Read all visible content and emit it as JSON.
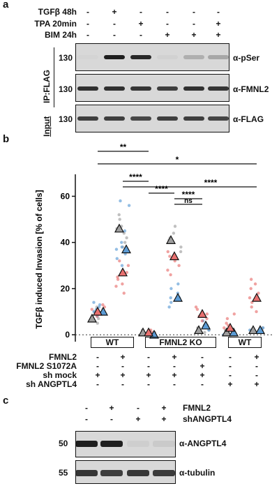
{
  "panel_a": {
    "letter": "a",
    "conditions": [
      {
        "label": "TGFβ 48h",
        "signs": [
          "-",
          "+",
          "-",
          "-",
          "-",
          "-"
        ]
      },
      {
        "label": "TPA 20min",
        "signs": [
          "-",
          "-",
          "+",
          "-",
          "-",
          "+"
        ]
      },
      {
        "label": "BIM 24h",
        "signs": [
          "-",
          "-",
          "-",
          "+",
          "+",
          "+"
        ]
      }
    ],
    "ip_label": "IP:FLAG",
    "input_label": "Input",
    "blots": [
      {
        "mw": "130",
        "antibody": "α-pSer",
        "band_intensity": [
          0.05,
          0.95,
          0.92,
          0.08,
          0.35,
          0.4
        ]
      },
      {
        "mw": "130",
        "antibody": "α-FMNL2",
        "band_intensity": [
          0.9,
          0.9,
          0.88,
          0.85,
          0.9,
          0.88
        ]
      },
      {
        "mw": "130",
        "antibody": "α-FLAG",
        "band_intensity": [
          0.85,
          0.85,
          0.82,
          0.85,
          0.85,
          0.83
        ]
      }
    ]
  },
  "panel_b": {
    "letter": "b",
    "groups": {
      "wt1": "WT",
      "ko": "FMNL2 KO",
      "wt2": "WT"
    },
    "conditions": [
      {
        "label": "FMNL2",
        "signs": [
          "-",
          "+",
          "-",
          "+",
          "-",
          "-",
          "+"
        ]
      },
      {
        "label": "FMNL2 S1072A",
        "signs": [
          "-",
          "-",
          "-",
          "-",
          "+",
          "-",
          "-"
        ]
      },
      {
        "label": "sh mock",
        "signs": [
          "+",
          "+",
          "+",
          "+",
          "+",
          "-",
          "-"
        ]
      },
      {
        "label": "sh ANGPTL4",
        "signs": [
          "-",
          "-",
          "-",
          "-",
          "-",
          "+",
          "+"
        ]
      }
    ],
    "significance": [
      {
        "label": "**",
        "from": 0,
        "to": 2
      },
      {
        "label": "*",
        "from": 0,
        "to": 6
      },
      {
        "label": "****",
        "from": 1,
        "to": 2
      },
      {
        "label": "****",
        "from": 1,
        "to": 6
      },
      {
        "label": "****",
        "from": 2,
        "to": 3
      },
      {
        "label": "****",
        "from": 3,
        "to": 4
      },
      {
        "label": "ns",
        "from": 3,
        "to": 4
      }
    ]
  },
  "chart_data": {
    "type": "scatter",
    "ylabel": "TGFβ induced Invasion [% of cells]",
    "yticks": [
      0,
      20,
      40,
      60
    ],
    "ylim": [
      -3,
      68
    ],
    "categories": [
      "1",
      "2",
      "3",
      "4",
      "5",
      "6",
      "7"
    ],
    "series": [
      {
        "color": "#9e9e9e",
        "means": [
          7,
          46,
          1,
          41,
          2,
          1,
          2
        ],
        "points": [
          [
            5,
            7,
            8,
            10,
            12,
            9,
            6,
            11
          ],
          [
            44,
            47,
            50,
            42,
            40,
            46,
            38,
            52
          ],
          [
            0,
            1,
            2,
            1,
            0,
            2,
            1
          ],
          [
            38,
            41,
            44,
            36,
            42,
            40,
            47
          ],
          [
            1,
            2,
            3,
            2,
            1,
            3
          ],
          [
            0,
            1,
            2,
            1,
            0
          ],
          [
            1,
            2,
            3,
            1,
            2
          ]
        ]
      },
      {
        "color": "#5b9bd5",
        "means": [
          10,
          37,
          0,
          16,
          4,
          1,
          2
        ],
        "points": [
          [
            8,
            10,
            12,
            11,
            9,
            13,
            7,
            14
          ],
          [
            30,
            33,
            37,
            40,
            35,
            45,
            56,
            58,
            38
          ],
          [
            0,
            1,
            0,
            1,
            0
          ],
          [
            14,
            16,
            18,
            12,
            20,
            22,
            16
          ],
          [
            2,
            3,
            4,
            5,
            4,
            6
          ],
          [
            0,
            1,
            2,
            1,
            0,
            2
          ],
          [
            1,
            2,
            3,
            2,
            1
          ]
        ]
      },
      {
        "color": "#e8706f",
        "means": [
          10,
          27,
          1,
          34,
          9,
          3,
          16
        ],
        "points": [
          [
            9,
            10,
            11,
            12,
            8,
            13
          ],
          [
            18,
            22,
            25,
            27,
            30,
            32,
            21,
            24
          ],
          [
            0,
            1,
            2,
            1
          ],
          [
            26,
            30,
            34,
            36,
            40,
            28,
            32
          ],
          [
            7,
            9,
            11,
            6,
            12,
            8
          ],
          [
            2,
            3,
            4,
            5,
            7,
            9
          ],
          [
            12,
            14,
            16,
            18,
            20,
            22,
            24,
            10
          ]
        ]
      }
    ]
  },
  "panel_c": {
    "letter": "c",
    "conditions": [
      {
        "label": "FMNL2",
        "signs": [
          "-",
          "+",
          "-",
          "+"
        ]
      },
      {
        "label": "shANGPTL4",
        "signs": [
          "-",
          "-",
          "+",
          "+"
        ]
      }
    ],
    "blots": [
      {
        "mw": "50",
        "antibody": "α-ANGPTL4",
        "band_intensity": [
          0.95,
          0.95,
          0.12,
          0.15
        ]
      },
      {
        "mw": "55",
        "antibody": "α-tubulin",
        "band_intensity": [
          0.88,
          0.85,
          0.87,
          0.86
        ]
      }
    ]
  }
}
